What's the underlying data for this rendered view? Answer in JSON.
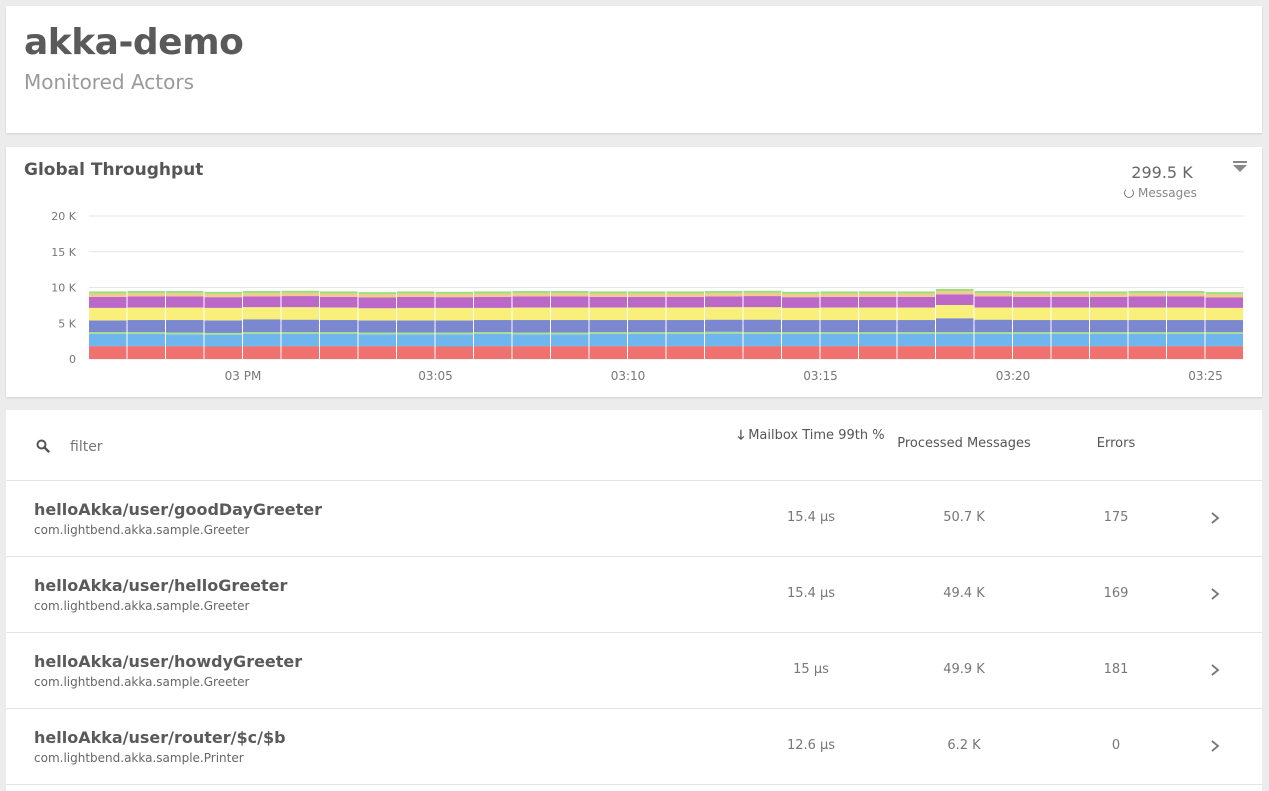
{
  "header": {
    "title": "akka-demo",
    "subtitle": "Monitored Actors"
  },
  "throughput": {
    "title": "Global Throughput",
    "total": "299.5 K",
    "total_label": "Messages",
    "menu_icon": "triangle-down-icon"
  },
  "chart_data": {
    "type": "area",
    "stacked": true,
    "title": "Global Throughput",
    "ylim": [
      0,
      20000
    ],
    "y_ticks": [
      "0",
      "5 K",
      "10 K",
      "15 K",
      "20 K"
    ],
    "y_tick_values": [
      0,
      5000,
      10000,
      15000,
      20000
    ],
    "x_ticks": [
      "03 PM",
      "03:05",
      "03:10",
      "03:15",
      "03:20",
      "03:25"
    ],
    "x_tick_minutes": [
      0,
      5,
      10,
      15,
      20,
      25
    ],
    "x_range_minutes": [
      -4,
      26
    ],
    "bucket_count": 30,
    "grid": true,
    "series": [
      {
        "color": "#f07270",
        "values": [
          1800,
          1800,
          1800,
          1750,
          1800,
          1800,
          1800,
          1800,
          1800,
          1750,
          1800,
          1800,
          1800,
          1800,
          1800,
          1800,
          1800,
          1800,
          1800,
          1800,
          1800,
          1800,
          1800,
          1800,
          1800,
          1800,
          1800,
          1800,
          1800,
          1800
        ]
      },
      {
        "color": "#6fb6ee",
        "values": [
          1700,
          1700,
          1650,
          1650,
          1700,
          1700,
          1700,
          1650,
          1650,
          1700,
          1700,
          1650,
          1650,
          1700,
          1700,
          1700,
          1750,
          1700,
          1700,
          1700,
          1700,
          1700,
          1700,
          1700,
          1700,
          1700,
          1700,
          1700,
          1700,
          1700
        ]
      },
      {
        "color": "#a8e28a",
        "values": [
          250,
          250,
          250,
          250,
          250,
          250,
          250,
          250,
          250,
          250,
          250,
          250,
          250,
          250,
          250,
          250,
          250,
          250,
          250,
          250,
          250,
          250,
          250,
          250,
          250,
          250,
          250,
          250,
          250,
          250
        ]
      },
      {
        "color": "#7b88cf",
        "values": [
          1650,
          1700,
          1750,
          1750,
          1800,
          1750,
          1700,
          1700,
          1700,
          1700,
          1700,
          1750,
          1750,
          1700,
          1700,
          1700,
          1700,
          1750,
          1700,
          1700,
          1700,
          1700,
          1950,
          1750,
          1700,
          1700,
          1700,
          1700,
          1700,
          1700
        ]
      },
      {
        "color": "#f8f07a",
        "values": [
          1750,
          1750,
          1750,
          1750,
          1700,
          1750,
          1750,
          1700,
          1750,
          1750,
          1700,
          1750,
          1750,
          1750,
          1750,
          1750,
          1750,
          1750,
          1700,
          1750,
          1750,
          1750,
          1850,
          1700,
          1750,
          1750,
          1750,
          1750,
          1750,
          1700
        ]
      },
      {
        "color": "#bc68c8",
        "values": [
          1550,
          1550,
          1550,
          1500,
          1500,
          1550,
          1500,
          1500,
          1550,
          1500,
          1550,
          1550,
          1550,
          1500,
          1500,
          1500,
          1500,
          1550,
          1500,
          1500,
          1500,
          1500,
          1500,
          1550,
          1500,
          1500,
          1500,
          1550,
          1550,
          1450
        ]
      },
      {
        "color": "#f3c98f",
        "values": [
          450,
          450,
          450,
          450,
          450,
          450,
          450,
          450,
          450,
          450,
          450,
          450,
          450,
          450,
          450,
          450,
          450,
          450,
          450,
          450,
          450,
          450,
          450,
          450,
          450,
          450,
          450,
          450,
          450,
          450
        ]
      },
      {
        "color": "#9be07a",
        "values": [
          300,
          300,
          300,
          300,
          300,
          300,
          300,
          300,
          300,
          300,
          300,
          300,
          300,
          300,
          300,
          300,
          300,
          300,
          300,
          300,
          300,
          300,
          300,
          300,
          300,
          300,
          300,
          300,
          300,
          300
        ]
      }
    ]
  },
  "table": {
    "filter_placeholder": "filter",
    "columns": {
      "mailbox": "Mailbox Time 99th %",
      "processed": "Processed Messages",
      "errors": "Errors"
    },
    "rows": [
      {
        "name": "helloAkka/user/goodDayGreeter",
        "class": "com.lightbend.akka.sample.Greeter",
        "mailbox": "15.4 µs",
        "processed": "50.7 K",
        "errors": "175"
      },
      {
        "name": "helloAkka/user/helloGreeter",
        "class": "com.lightbend.akka.sample.Greeter",
        "mailbox": "15.4 µs",
        "processed": "49.4 K",
        "errors": "169"
      },
      {
        "name": "helloAkka/user/howdyGreeter",
        "class": "com.lightbend.akka.sample.Greeter",
        "mailbox": "15 µs",
        "processed": "49.9 K",
        "errors": "181"
      },
      {
        "name": "helloAkka/user/router/$c/$b",
        "class": "com.lightbend.akka.sample.Printer",
        "mailbox": "12.6 µs",
        "processed": "6.2 K",
        "errors": "0"
      }
    ]
  }
}
